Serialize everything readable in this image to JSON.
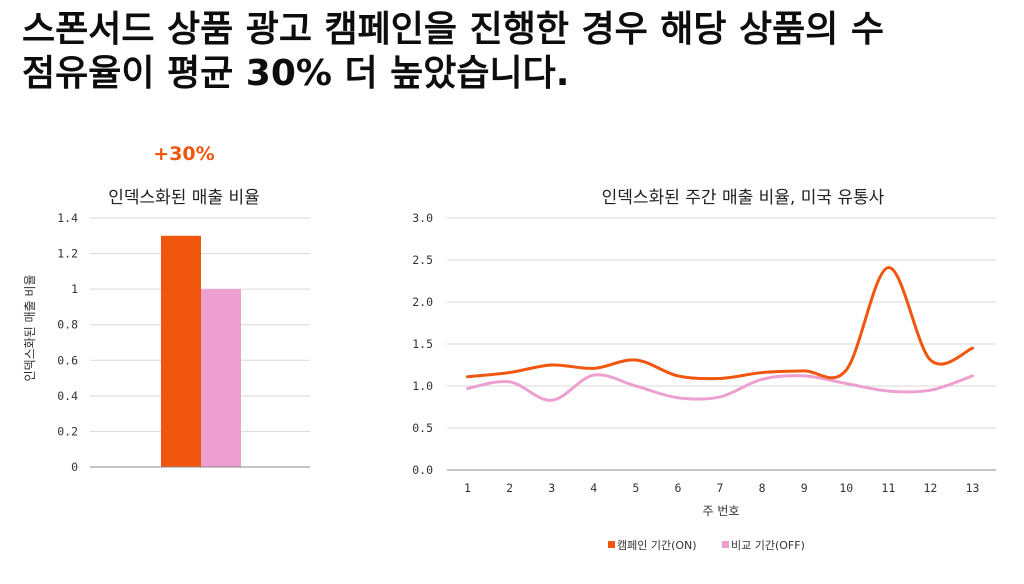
{
  "headline": {
    "line1": "스폰서드 상품 광고 캠페인을 진행한 경우 해당 상품의 수",
    "line2": "점유율이 평균 30% 더 높았습니다."
  },
  "colors": {
    "on": "#f0560d",
    "off": "#eda0cf",
    "grid": "#d9d9d9"
  },
  "chart_data": [
    {
      "type": "bar",
      "title": "인덱스화된 매출 비율",
      "ylabel": "인덱스화된 매출 비율",
      "annotation": "+30%",
      "ylim": [
        0,
        1.4
      ],
      "yticks": [
        "0",
        "0.2",
        "0.4",
        "0.6",
        "0.8",
        "1",
        "1.2",
        "1.4"
      ],
      "ytick_values": [
        0,
        0.2,
        0.4,
        0.6,
        0.8,
        1,
        1.2,
        1.4
      ],
      "series": [
        {
          "key": "on",
          "value": 1.3
        },
        {
          "key": "off",
          "value": 1.0
        }
      ]
    },
    {
      "type": "line",
      "title": "인덱스화된 주간 매출 비율, 미국 유통사",
      "xlabel": "주 번호",
      "ylim": [
        0,
        3.0
      ],
      "yticks": [
        "0.0",
        "0.5",
        "1.0",
        "1.5",
        "2.0",
        "2.5",
        "3.0"
      ],
      "ytick_values": [
        0,
        0.5,
        1.0,
        1.5,
        2.0,
        2.5,
        3.0
      ],
      "x": [
        1,
        2,
        3,
        4,
        5,
        6,
        7,
        8,
        9,
        10,
        11,
        12,
        13
      ],
      "series": [
        {
          "key": "on",
          "name": "캠페인 기간(ON)",
          "values": [
            1.11,
            1.16,
            1.25,
            1.21,
            1.31,
            1.12,
            1.09,
            1.16,
            1.18,
            1.19,
            2.41,
            1.31,
            1.45
          ]
        },
        {
          "key": "off",
          "name": "비교 기간(OFF)",
          "values": [
            0.97,
            1.05,
            0.83,
            1.13,
            1.0,
            0.86,
            0.87,
            1.08,
            1.12,
            1.03,
            0.94,
            0.95,
            1.12
          ]
        }
      ]
    }
  ]
}
